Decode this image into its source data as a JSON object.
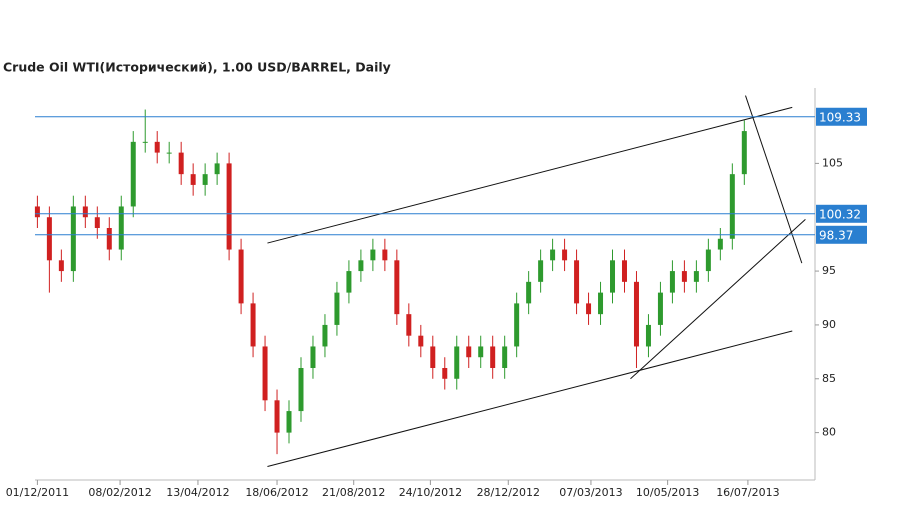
{
  "chart_data": {
    "type": "candlestick",
    "title": "Crude Oil WTI(Исторический), 1.00 USD/BARREL, Daily",
    "x": [
      "01/12/2011",
      "11/12/2011",
      "21/12/2011",
      "31/12/2011",
      "10/01/2012",
      "20/01/2012",
      "30/01/2012",
      "09/02/2012",
      "19/02/2012",
      "29/02/2012",
      "10/03/2012",
      "20/03/2012",
      "30/03/2012",
      "09/04/2012",
      "19/04/2012",
      "29/04/2012",
      "09/05/2012",
      "19/05/2012",
      "29/05/2012",
      "08/06/2012",
      "18/06/2012",
      "28/06/2012",
      "08/07/2012",
      "18/07/2012",
      "28/07/2012",
      "07/08/2012",
      "17/08/2012",
      "27/08/2012",
      "06/09/2012",
      "16/09/2012",
      "26/09/2012",
      "06/10/2012",
      "16/10/2012",
      "26/10/2012",
      "05/11/2012",
      "15/11/2012",
      "25/11/2012",
      "05/12/2012",
      "15/12/2012",
      "25/12/2012",
      "04/01/2013",
      "14/01/2013",
      "24/01/2013",
      "03/02/2013",
      "13/02/2013",
      "23/02/2013",
      "05/03/2013",
      "15/03/2013",
      "25/03/2013",
      "04/04/2013",
      "14/04/2013",
      "24/04/2013",
      "04/05/2013",
      "14/05/2013",
      "24/05/2013",
      "03/06/2013",
      "13/06/2013",
      "23/06/2013",
      "03/07/2013",
      "13/07/2013"
    ],
    "open": [
      101,
      100,
      96,
      95,
      101,
      100,
      99,
      97,
      101,
      107,
      107,
      106,
      106,
      104,
      103,
      104,
      105,
      97,
      92,
      88,
      83,
      80,
      82,
      86,
      88,
      90,
      93,
      95,
      96,
      97,
      96,
      91,
      89,
      88,
      86,
      85,
      88,
      87,
      88,
      86,
      88,
      92,
      94,
      96,
      97,
      96,
      92,
      91,
      93,
      96,
      94,
      88,
      90,
      93,
      95,
      94,
      95,
      97,
      98,
      104
    ],
    "high": [
      102,
      101,
      97,
      102,
      102,
      101,
      100,
      102,
      108,
      110,
      108,
      107,
      107,
      105,
      105,
      106,
      106,
      98,
      93,
      89,
      84,
      83,
      87,
      89,
      91,
      94,
      96,
      97,
      98,
      98,
      97,
      92,
      90,
      89,
      87,
      89,
      89,
      89,
      89,
      89,
      93,
      95,
      97,
      98,
      98,
      97,
      93,
      94,
      97,
      97,
      95,
      91,
      94,
      96,
      96,
      96,
      98,
      99,
      105,
      109
    ],
    "low": [
      99,
      93,
      94,
      94,
      99,
      98,
      96,
      96,
      100,
      106,
      105,
      105,
      103,
      102,
      102,
      103,
      96,
      91,
      87,
      82,
      78,
      79,
      81,
      85,
      87,
      89,
      92,
      94,
      95,
      95,
      90,
      88,
      87,
      85,
      84,
      84,
      86,
      86,
      85,
      85,
      87,
      91,
      93,
      95,
      95,
      91,
      90,
      90,
      92,
      93,
      86,
      87,
      89,
      92,
      93,
      93,
      94,
      96,
      97,
      103
    ],
    "close": [
      100,
      96,
      95,
      101,
      100,
      99,
      97,
      101,
      107,
      107,
      106,
      106,
      104,
      103,
      104,
      105,
      97,
      92,
      88,
      83,
      80,
      82,
      86,
      88,
      90,
      93,
      95,
      96,
      97,
      96,
      91,
      89,
      88,
      86,
      85,
      88,
      87,
      88,
      86,
      88,
      92,
      94,
      96,
      97,
      96,
      92,
      91,
      93,
      96,
      94,
      88,
      90,
      93,
      95,
      94,
      95,
      97,
      98,
      104,
      108
    ],
    "up_color": "#2e9a2e",
    "down_color": "#d02020",
    "xlim": [
      "29/11/2011",
      "10/09/2013"
    ],
    "xticks": [
      "01/12/2011",
      "08/02/2012",
      "13/04/2012",
      "18/06/2012",
      "21/08/2012",
      "24/10/2012",
      "28/12/2012",
      "07/03/2013",
      "10/05/2013",
      "16/07/2013"
    ],
    "ylim": [
      75.6,
      112
    ],
    "yticks": [
      80,
      85,
      90,
      95,
      105
    ],
    "hlines": [
      {
        "value": 109.33
      },
      {
        "value": 100.32
      },
      {
        "value": 98.37
      }
    ],
    "hline_color": "#2a7fd0",
    "trendlines": [
      {
        "x": [
          "10/06/2012",
          "22/08/2013"
        ],
        "y": [
          97.6,
          110.2
        ]
      },
      {
        "x": [
          "10/06/2012",
          "22/08/2013"
        ],
        "y": [
          76.85,
          89.44
        ]
      },
      {
        "x": [
          "09/04/2013",
          "02/09/2013"
        ],
        "y": [
          85.0,
          99.8
        ]
      },
      {
        "x": [
          "14/07/2013",
          "30/08/2013"
        ],
        "y": [
          111.3,
          95.74
        ]
      }
    ]
  }
}
